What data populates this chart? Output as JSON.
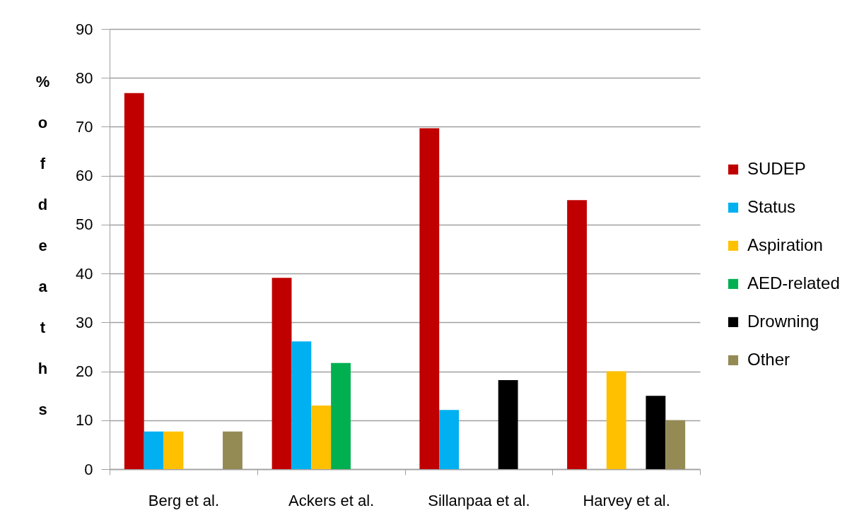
{
  "chart_data": {
    "type": "bar",
    "ylabel": "% of deaths",
    "categories": [
      "Berg et al.",
      "Ackers et al.",
      "Sillanpaa et al.",
      "Harvey et al."
    ],
    "series": [
      {
        "name": "SUDEP",
        "color": "#c00000",
        "values": [
          76.9,
          39.1,
          69.7,
          55
        ]
      },
      {
        "name": "Status",
        "color": "#00b0f0",
        "values": [
          7.7,
          26.1,
          12.1,
          null
        ]
      },
      {
        "name": "Aspiration",
        "color": "#ffc000",
        "values": [
          7.7,
          13.0,
          null,
          20
        ]
      },
      {
        "name": "AED-related",
        "color": "#00b050",
        "values": [
          null,
          21.7,
          null,
          null
        ]
      },
      {
        "name": "Drowning",
        "color": "#000000",
        "values": [
          null,
          null,
          18.2,
          15
        ]
      },
      {
        "name": "Other",
        "color": "#948a54",
        "values": [
          7.7,
          null,
          null,
          10
        ]
      }
    ],
    "ylim": [
      0,
      90
    ],
    "yticks": [
      0,
      10,
      20,
      30,
      40,
      50,
      60,
      70,
      80,
      90
    ],
    "grid": "y",
    "legend": "right"
  }
}
